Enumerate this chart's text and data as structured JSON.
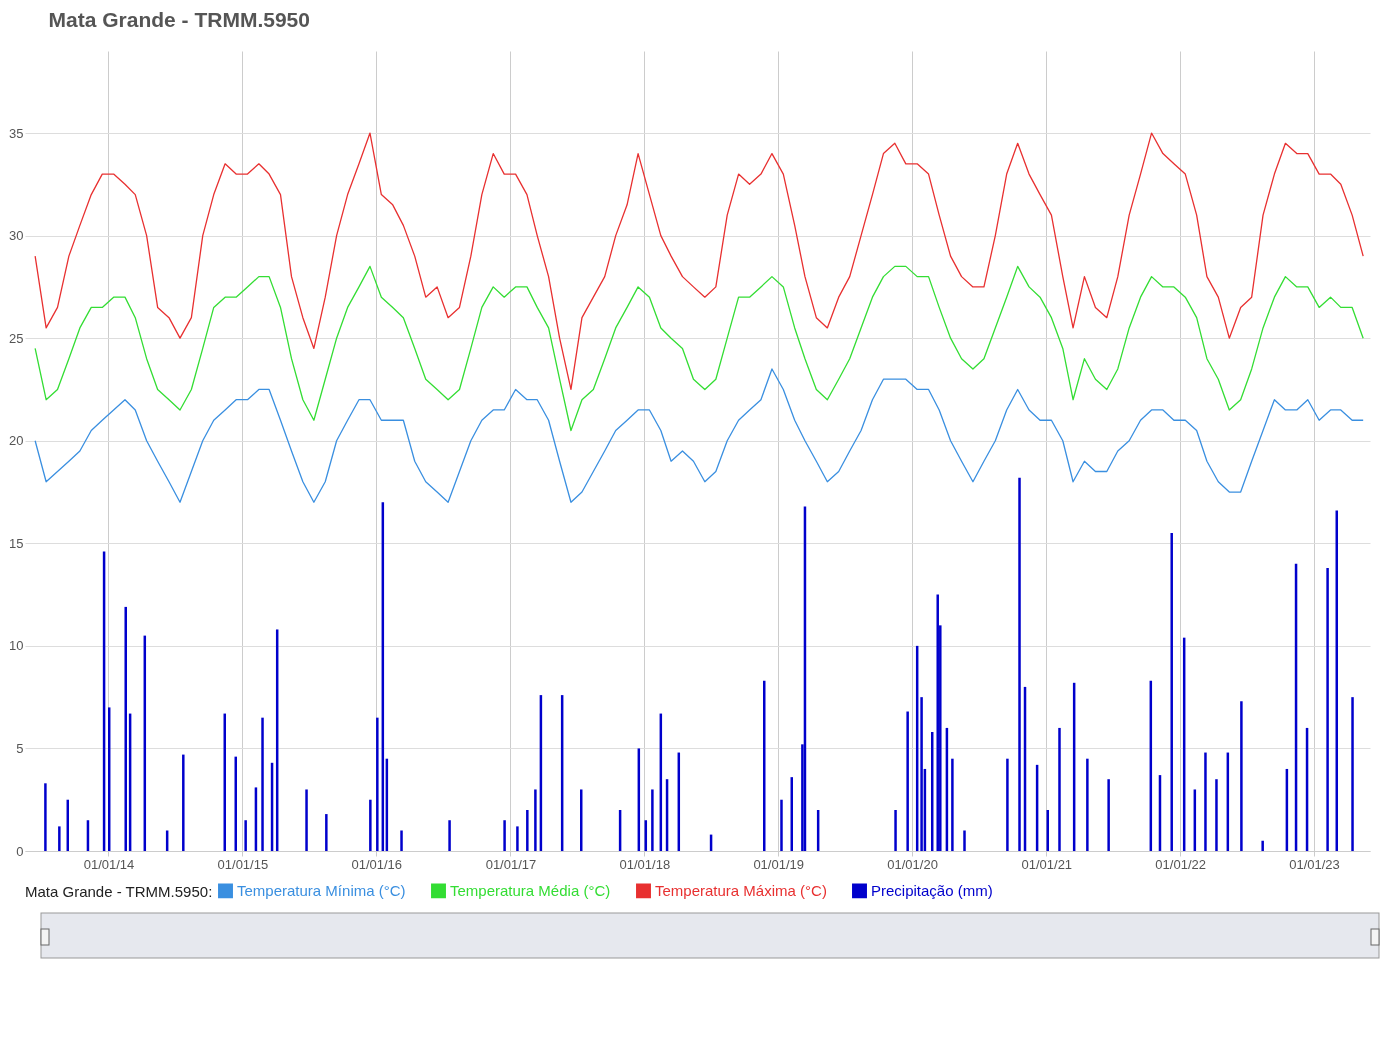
{
  "chart_data": {
    "type": "line",
    "title": "Mata Grande - TRMM.5950",
    "legend_title": "Mata Grande - TRMM.5950:",
    "legend": "bottom",
    "grid": true,
    "xlim": [
      "2013-06-01",
      "2023-05-20"
    ],
    "xticks": [
      {
        "value": "2014-01-01",
        "label": "01/01/14"
      },
      {
        "value": "2015-01-01",
        "label": "01/01/15"
      },
      {
        "value": "2016-01-01",
        "label": "01/01/16"
      },
      {
        "value": "2017-01-01",
        "label": "01/01/17"
      },
      {
        "value": "2018-01-01",
        "label": "01/01/18"
      },
      {
        "value": "2019-01-01",
        "label": "01/01/19"
      },
      {
        "value": "2020-01-01",
        "label": "01/01/20"
      },
      {
        "value": "2021-01-01",
        "label": "01/01/21"
      },
      {
        "value": "2022-01-01",
        "label": "01/01/22"
      },
      {
        "value": "2023-01-01",
        "label": "01/01/23"
      }
    ],
    "ylim": [
      0,
      39
    ],
    "yticks": [
      0,
      5,
      10,
      15,
      20,
      25,
      30,
      35
    ],
    "x": [
      "2013-06-15",
      "2013-07-15",
      "2013-08-15",
      "2013-09-15",
      "2013-10-15",
      "2013-11-15",
      "2013-12-15",
      "2014-01-15",
      "2014-02-15",
      "2014-03-15",
      "2014-04-15",
      "2014-05-15",
      "2014-06-15",
      "2014-07-15",
      "2014-08-15",
      "2014-09-15",
      "2014-10-15",
      "2014-11-15",
      "2014-12-15",
      "2015-01-15",
      "2015-02-15",
      "2015-03-15",
      "2015-04-15",
      "2015-05-15",
      "2015-06-15",
      "2015-07-15",
      "2015-08-15",
      "2015-09-15",
      "2015-10-15",
      "2015-11-15",
      "2015-12-15",
      "2016-01-15",
      "2016-02-15",
      "2016-03-15",
      "2016-04-15",
      "2016-05-15",
      "2016-06-15",
      "2016-07-15",
      "2016-08-15",
      "2016-09-15",
      "2016-10-15",
      "2016-11-15",
      "2016-12-15",
      "2017-01-15",
      "2017-02-15",
      "2017-03-15",
      "2017-04-15",
      "2017-05-15",
      "2017-06-15",
      "2017-07-15",
      "2017-08-15",
      "2017-09-15",
      "2017-10-15",
      "2017-11-15",
      "2017-12-15",
      "2018-01-15",
      "2018-02-15",
      "2018-03-15",
      "2018-04-15",
      "2018-05-15",
      "2018-06-15",
      "2018-07-15",
      "2018-08-15",
      "2018-09-15",
      "2018-10-15",
      "2018-11-15",
      "2018-12-15",
      "2019-01-15",
      "2019-02-15",
      "2019-03-15",
      "2019-04-15",
      "2019-05-15",
      "2019-06-15",
      "2019-07-15",
      "2019-08-15",
      "2019-09-15",
      "2019-10-15",
      "2019-11-15",
      "2019-12-15",
      "2020-01-15",
      "2020-02-15",
      "2020-03-15",
      "2020-04-15",
      "2020-05-15",
      "2020-06-15",
      "2020-07-15",
      "2020-08-15",
      "2020-09-15",
      "2020-10-15",
      "2020-11-15",
      "2020-12-15",
      "2021-01-15",
      "2021-02-15",
      "2021-03-15",
      "2021-04-15",
      "2021-05-15",
      "2021-06-15",
      "2021-07-15",
      "2021-08-15",
      "2021-09-15",
      "2021-10-15",
      "2021-11-15",
      "2021-12-15",
      "2022-01-15",
      "2022-02-15",
      "2022-03-15",
      "2022-04-15",
      "2022-05-15",
      "2022-06-15",
      "2022-07-15",
      "2022-08-15",
      "2022-09-15",
      "2022-10-15",
      "2022-11-15",
      "2022-12-15",
      "2023-01-15",
      "2023-02-15",
      "2023-03-15",
      "2023-04-15",
      "2023-05-15"
    ],
    "series": [
      {
        "name": "Temperatura Mínima (°C)",
        "color": "#3a8fe0",
        "values": [
          20,
          18,
          18.5,
          19,
          19.5,
          20.5,
          21,
          21.5,
          22,
          21.5,
          20,
          19,
          18,
          17,
          18.5,
          20,
          21,
          21.5,
          22,
          22,
          22.5,
          22.5,
          21,
          19.5,
          18,
          17,
          18,
          20,
          21,
          22,
          22,
          21,
          21,
          21,
          19,
          18,
          17.5,
          17,
          18.5,
          20,
          21,
          21.5,
          21.5,
          22.5,
          22,
          22,
          21,
          19,
          17,
          17.5,
          18.5,
          19.5,
          20.5,
          21,
          21.5,
          21.5,
          20.5,
          19,
          19.5,
          19,
          18,
          18.5,
          20,
          21,
          21.5,
          22,
          23.5,
          22.5,
          21,
          20,
          19,
          18,
          18.5,
          19.5,
          20.5,
          22,
          23,
          23,
          23,
          22.5,
          22.5,
          21.5,
          20,
          19,
          18,
          19,
          20,
          21.5,
          22.5,
          21.5,
          21,
          21,
          20,
          18,
          19,
          18.5,
          18.5,
          19.5,
          20,
          21,
          21.5,
          21.5,
          21,
          21,
          20.5,
          19,
          18,
          17.5,
          17.5,
          19,
          20.5,
          22,
          21.5,
          21.5,
          22,
          21,
          21.5,
          21.5,
          21,
          21
        ]
      },
      {
        "name": "Temperatura Média (°C)",
        "color": "#33dd33",
        "values": [
          24.5,
          22,
          22.5,
          24,
          25.5,
          26.5,
          26.5,
          27,
          27,
          26,
          24,
          22.5,
          22,
          21.5,
          22.5,
          24.5,
          26.5,
          27,
          27,
          27.5,
          28,
          28,
          26.5,
          24,
          22,
          21,
          23,
          25,
          26.5,
          27.5,
          28.5,
          27,
          26.5,
          26,
          24.5,
          23,
          22.5,
          22,
          22.5,
          24.5,
          26.5,
          27.5,
          27,
          27.5,
          27.5,
          26.5,
          25.5,
          23,
          20.5,
          22,
          22.5,
          24,
          25.5,
          26.5,
          27.5,
          27,
          25.5,
          25,
          24.5,
          23,
          22.5,
          23,
          25,
          27,
          27,
          27.5,
          28,
          27.5,
          25.5,
          24,
          22.5,
          22,
          23,
          24,
          25.5,
          27,
          28,
          28.5,
          28.5,
          28,
          28,
          26.5,
          25,
          24,
          23.5,
          24,
          25.5,
          27,
          28.5,
          27.5,
          27,
          26,
          24.5,
          22,
          24,
          23,
          22.5,
          23.5,
          25.5,
          27,
          28,
          27.5,
          27.5,
          27,
          26,
          24,
          23,
          21.5,
          22,
          23.5,
          25.5,
          27,
          28,
          27.5,
          27.5,
          26.5,
          27,
          26.5,
          26.5,
          25
        ]
      },
      {
        "name": "Temperatura Máxima (°C)",
        "color": "#e83030",
        "values": [
          29,
          25.5,
          26.5,
          29,
          30.5,
          32,
          33,
          33,
          32.5,
          32,
          30,
          26.5,
          26,
          25,
          26,
          30,
          32,
          33.5,
          33,
          33,
          33.5,
          33,
          32,
          28,
          26,
          24.5,
          27,
          30,
          32,
          33.5,
          35,
          32,
          31.5,
          30.5,
          29,
          27,
          27.5,
          26,
          26.5,
          29,
          32,
          34,
          33,
          33,
          32,
          30,
          28,
          25,
          22.5,
          26,
          27,
          28,
          30,
          31.5,
          34,
          32,
          30,
          29,
          28,
          27.5,
          27,
          27.5,
          31,
          33,
          32.5,
          33,
          34,
          33,
          30.5,
          28,
          26,
          25.5,
          27,
          28,
          30,
          32,
          34,
          34.5,
          33.5,
          33.5,
          33,
          31,
          29,
          28,
          27.5,
          27.5,
          30,
          33,
          34.5,
          33,
          32,
          31,
          28,
          25.5,
          28,
          26.5,
          26,
          28,
          31,
          33,
          35,
          34,
          33.5,
          33,
          31,
          28,
          27,
          25,
          26.5,
          27,
          31,
          33,
          34.5,
          34,
          34,
          33,
          33,
          32.5,
          31,
          29
        ]
      },
      {
        "name": "Precipitação (mm)",
        "color": "#0000cc",
        "type": "bar",
        "x": [
          "2013-07-13",
          "2013-08-20",
          "2013-09-12",
          "2013-11-06",
          "2013-12-20",
          "2014-01-03",
          "2014-02-17",
          "2014-03-01",
          "2014-04-10",
          "2014-06-10",
          "2014-07-24",
          "2014-11-14",
          "2014-12-14",
          "2015-01-10",
          "2015-02-07",
          "2015-02-25",
          "2015-03-23",
          "2015-04-06",
          "2015-06-25",
          "2015-08-18",
          "2015-12-16",
          "2016-01-04",
          "2016-01-19",
          "2016-01-30",
          "2016-03-10",
          "2016-07-19",
          "2016-12-16",
          "2017-01-20",
          "2017-02-16",
          "2017-03-10",
          "2017-03-25",
          "2017-05-22",
          "2017-07-13",
          "2017-10-27",
          "2017-12-17",
          "2018-01-05",
          "2018-01-23",
          "2018-02-15",
          "2018-03-04",
          "2018-04-05",
          "2018-07-02",
          "2018-11-24",
          "2019-01-10",
          "2019-02-07",
          "2019-03-08",
          "2019-03-15",
          "2019-04-20",
          "2019-11-17",
          "2019-12-20",
          "2020-01-15",
          "2020-01-27",
          "2020-02-05",
          "2020-02-25",
          "2020-03-11",
          "2020-03-18",
          "2020-04-05",
          "2020-04-20",
          "2020-05-23",
          "2020-09-17",
          "2020-10-20",
          "2020-11-04",
          "2020-12-07",
          "2021-01-05",
          "2021-02-06",
          "2021-03-18",
          "2021-04-23",
          "2021-06-20",
          "2021-10-13",
          "2021-11-07",
          "2021-12-09",
          "2022-01-12",
          "2022-02-10",
          "2022-03-11",
          "2022-04-10",
          "2022-05-11",
          "2022-06-17",
          "2022-08-14",
          "2022-10-19",
          "2022-11-13",
          "2022-12-13",
          "2023-02-07",
          "2023-03-04",
          "2023-04-16"
        ],
        "values": [
          3.3,
          1.2,
          2.5,
          1.5,
          14.6,
          7,
          11.9,
          6.7,
          10.5,
          1,
          4.7,
          6.7,
          4.6,
          1.5,
          3.1,
          6.5,
          4.3,
          10.8,
          3,
          1.8,
          2.5,
          6.5,
          17,
          4.5,
          1,
          1.5,
          1.5,
          1.2,
          2,
          3,
          7.6,
          7.6,
          3,
          2,
          5,
          1.5,
          3,
          6.7,
          3.5,
          4.8,
          0.8,
          8.3,
          2.5,
          3.6,
          5.2,
          16.8,
          2,
          2,
          6.8,
          10,
          7.5,
          4,
          5.8,
          12.5,
          11,
          6,
          4.5,
          1,
          4.5,
          18.2,
          8,
          4.2,
          2,
          6,
          8.2,
          4.5,
          3.5,
          8.3,
          3.7,
          15.5,
          10.4,
          3,
          4.8,
          3.5,
          4.8,
          7.3,
          0.5,
          4,
          14,
          6,
          13.8,
          16.6,
          7.5
        ]
      }
    ]
  }
}
